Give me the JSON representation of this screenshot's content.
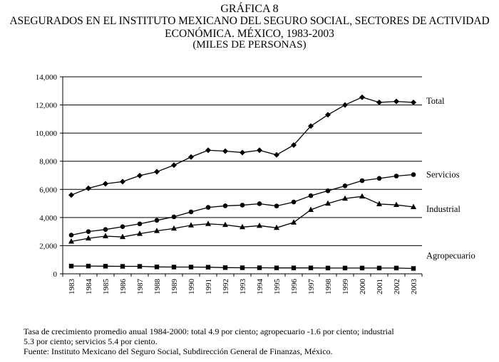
{
  "header": {
    "line1": "GRÁFICA 8",
    "line2": "ASEGURADOS EN EL INSTITUTO MEXICANO DEL SEGURO SOCIAL, SECTORES DE ACTIVIDAD",
    "line3": "ECONÓMICA. MÉXICO, 1983-2003",
    "line4": "(MILES DE PERSONAS)"
  },
  "chart_data": {
    "type": "line",
    "title": "ASEGURADOS EN EL INSTITUTO MEXICANO DEL SEGURO SOCIAL, SECTORES DE ACTIVIDAD ECONÓMICA. MÉXICO, 1983-2003",
    "ylabel": "",
    "xlabel": "",
    "ylim": [
      0,
      14000
    ],
    "yticks": [
      0,
      2000,
      4000,
      6000,
      8000,
      10000,
      12000,
      14000
    ],
    "ytick_labels": [
      "0",
      "2,000",
      "4,000",
      "6,000",
      "8,000",
      "10,000",
      "12,000",
      "14,000"
    ],
    "grid": "horizontal",
    "legend": "series labels at right end of lines",
    "categories": [
      "1983",
      "1984",
      "1985",
      "1986",
      "1987",
      "1988",
      "1989",
      "1990",
      "1991",
      "1992",
      "1993",
      "1994",
      "1995",
      "1996",
      "1997",
      "1998",
      "1999",
      "2000",
      "2001",
      "2002",
      "2003"
    ],
    "series": [
      {
        "name": "Total",
        "marker": "diamond",
        "values": [
          5600,
          6080,
          6400,
          6550,
          6980,
          7250,
          7720,
          8300,
          8780,
          8720,
          8620,
          8780,
          8450,
          9150,
          10500,
          11300,
          12000,
          12550,
          12180,
          12250,
          12180
        ]
      },
      {
        "name": "Servicios",
        "marker": "circle",
        "values": [
          2750,
          3000,
          3150,
          3350,
          3550,
          3800,
          4050,
          4400,
          4720,
          4830,
          4880,
          4980,
          4820,
          5100,
          5550,
          5900,
          6250,
          6620,
          6780,
          6950,
          7050
        ]
      },
      {
        "name": "Industrial",
        "marker": "triangle",
        "values": [
          2300,
          2520,
          2680,
          2620,
          2850,
          3050,
          3220,
          3450,
          3550,
          3480,
          3320,
          3420,
          3270,
          3650,
          4550,
          5000,
          5350,
          5500,
          4960,
          4900,
          4750
        ]
      },
      {
        "name": "Agropecuario",
        "marker": "square",
        "values": [
          550,
          550,
          540,
          530,
          530,
          490,
          480,
          480,
          470,
          440,
          430,
          430,
          420,
          420,
          420,
          410,
          410,
          410,
          410,
          410,
          380
        ]
      }
    ]
  },
  "notes": {
    "line1": "Tasa de crecimiento promedio anual 1984-2000: total 4.9 por ciento; agropecuario -1.6 por ciento; industrial",
    "line2": "5.3 por ciento; servicios 5.4 por ciento.",
    "line3": "Fuente: Instituto Mexicano del Seguro Social, Subdirección General de Finanzas, México."
  }
}
